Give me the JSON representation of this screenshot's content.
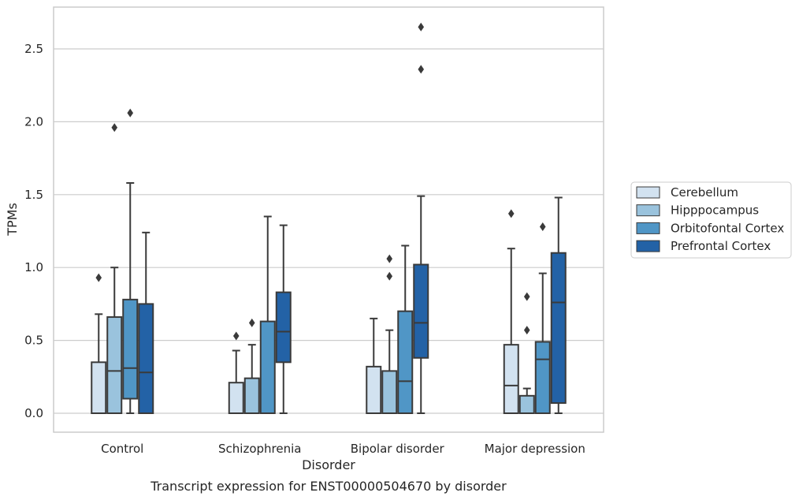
{
  "caption": "Transcript expression for ENST00000504670 by disorder",
  "chart_data": {
    "type": "box",
    "title": "",
    "xlabel": "Disorder",
    "ylabel": "TPMs",
    "ylim": [
      -0.13,
      2.79
    ],
    "yticks": [
      0.0,
      0.5,
      1.0,
      1.5,
      2.0,
      2.5
    ],
    "ytick_labels": [
      "0.0",
      "0.5",
      "1.0",
      "1.5",
      "2.0",
      "2.5"
    ],
    "grid": "horizontal",
    "legend_position": "center-right outside",
    "categories": [
      "Control",
      "Schizophrenia",
      "Bipolar disorder",
      "Major depression"
    ],
    "series": [
      {
        "name": "Cerebellum",
        "color": "#d2e2f0",
        "boxes": [
          {
            "min": 0.0,
            "q1": 0.0,
            "median": 0.0,
            "q3": 0.35,
            "max": 0.68,
            "outliers": [
              0.93
            ]
          },
          {
            "min": 0.0,
            "q1": 0.0,
            "median": 0.0,
            "q3": 0.21,
            "max": 0.43,
            "outliers": [
              0.53
            ]
          },
          {
            "min": 0.0,
            "q1": 0.0,
            "median": 0.0,
            "q3": 0.32,
            "max": 0.65,
            "outliers": []
          },
          {
            "min": 0.0,
            "q1": 0.0,
            "median": 0.19,
            "q3": 0.47,
            "max": 1.13,
            "outliers": [
              1.37
            ]
          }
        ]
      },
      {
        "name": "Hipppocampus",
        "color": "#9ac3dd",
        "boxes": [
          {
            "min": 0.0,
            "q1": 0.0,
            "median": 0.29,
            "q3": 0.66,
            "max": 1.0,
            "outliers": [
              1.96
            ]
          },
          {
            "min": 0.0,
            "q1": 0.0,
            "median": 0.0,
            "q3": 0.24,
            "max": 0.47,
            "outliers": [
              0.62
            ]
          },
          {
            "min": 0.0,
            "q1": 0.0,
            "median": 0.0,
            "q3": 0.29,
            "max": 0.57,
            "outliers": [
              0.94,
              1.06
            ]
          },
          {
            "min": 0.0,
            "q1": 0.0,
            "median": 0.0,
            "q3": 0.12,
            "max": 0.17,
            "outliers": [
              0.57,
              0.8
            ]
          }
        ]
      },
      {
        "name": "Orbitofontal Cortex",
        "color": "#5096c6",
        "boxes": [
          {
            "min": 0.0,
            "q1": 0.1,
            "median": 0.31,
            "q3": 0.78,
            "max": 1.58,
            "outliers": [
              2.06
            ]
          },
          {
            "min": 0.0,
            "q1": 0.0,
            "median": 0.0,
            "q3": 0.63,
            "max": 1.35,
            "outliers": []
          },
          {
            "min": 0.0,
            "q1": 0.0,
            "median": 0.22,
            "q3": 0.7,
            "max": 1.15,
            "outliers": []
          },
          {
            "min": 0.0,
            "q1": 0.0,
            "median": 0.37,
            "q3": 0.49,
            "max": 0.96,
            "outliers": [
              1.28
            ]
          }
        ]
      },
      {
        "name": "Prefrontal Cortex",
        "color": "#2362a6",
        "boxes": [
          {
            "min": 0.0,
            "q1": 0.0,
            "median": 0.28,
            "q3": 0.75,
            "max": 1.24,
            "outliers": []
          },
          {
            "min": 0.0,
            "q1": 0.35,
            "median": 0.56,
            "q3": 0.83,
            "max": 1.29,
            "outliers": []
          },
          {
            "min": 0.0,
            "q1": 0.38,
            "median": 0.62,
            "q3": 1.02,
            "max": 1.49,
            "outliers": [
              2.36,
              2.65
            ]
          },
          {
            "min": 0.0,
            "q1": 0.07,
            "median": 0.76,
            "q3": 1.1,
            "max": 1.48,
            "outliers": []
          }
        ]
      }
    ]
  }
}
